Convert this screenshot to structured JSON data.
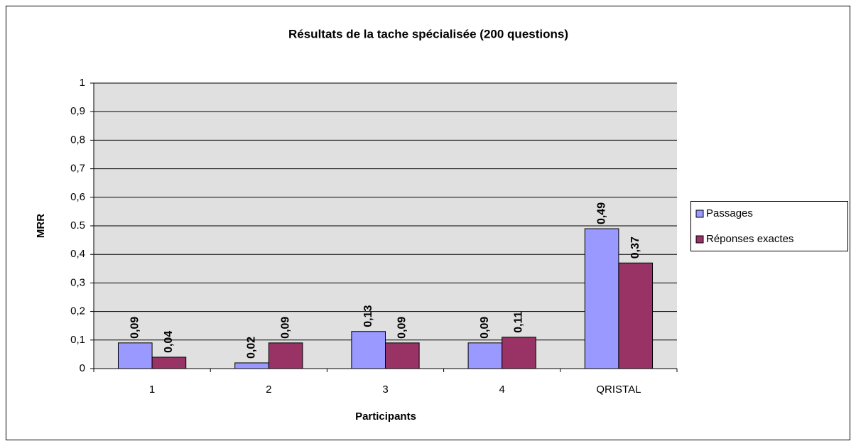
{
  "chart_data": {
    "type": "bar",
    "title": "Résultats de la tache spécialisée (200 questions)",
    "x_label": "Participants",
    "y_label": "MRR",
    "categories": [
      "1",
      "2",
      "3",
      "4",
      "QRISTAL"
    ],
    "series": [
      {
        "name": "Passages",
        "color": "#9999ff",
        "values": [
          0.09,
          0.02,
          0.13,
          0.09,
          0.49
        ],
        "value_labels": [
          "0,09",
          "0,02",
          "0,13",
          "0,09",
          "0,49"
        ]
      },
      {
        "name": "Réponses exactes",
        "color": "#993366",
        "values": [
          0.04,
          0.09,
          0.09,
          0.11,
          0.37
        ],
        "value_labels": [
          "0,04",
          "0,09",
          "0,09",
          "0,11",
          "0,37"
        ]
      }
    ],
    "ylim": [
      0,
      1
    ],
    "yticks": [
      0,
      {
        "value": 0.1,
        "label": "0,1"
      },
      {
        "value": 0.2,
        "label": "0,2"
      },
      {
        "value": 0.3,
        "label": "0,3"
      },
      {
        "value": 0.4,
        "label": "0,4"
      },
      0.5,
      {
        "value": 0.6,
        "label": "0,6"
      },
      {
        "value": 0.7,
        "label": "0,7"
      },
      {
        "value": 0.8,
        "label": "0,8"
      },
      {
        "value": 0.9,
        "label": "0,9"
      },
      1
    ],
    "grid": true,
    "legend": "right"
  }
}
